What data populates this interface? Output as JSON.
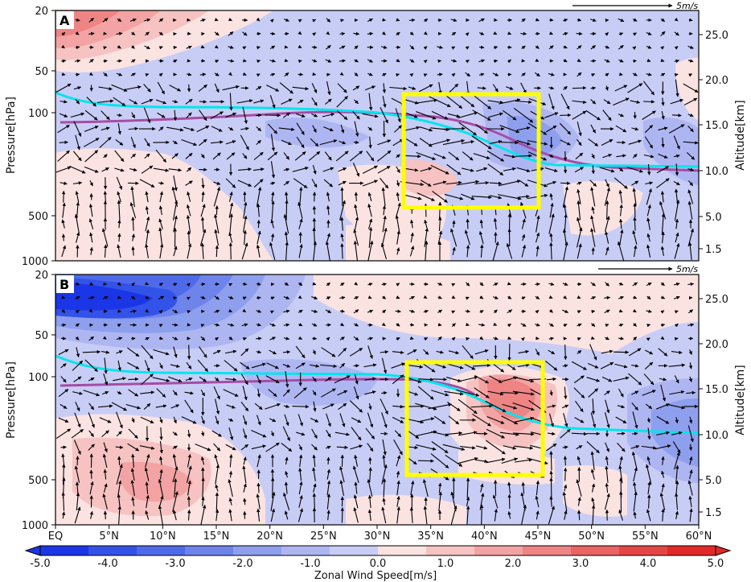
{
  "chart_data": [
    {
      "type": "contour",
      "panel_label": "A",
      "ylabel_left": "Pressure[hPa]",
      "ylabel_right": "Altitude[km]",
      "y_ticks_left": [
        "20",
        "50",
        "100",
        "500",
        "1000"
      ],
      "y_ticks_right": [
        "25.0",
        "20.0",
        "15.0",
        "10.0",
        "5.0",
        "1.5"
      ],
      "reference_vector": "5m/s",
      "tropopause_lines": [
        {
          "color": "#00e5ee",
          "pressure_hPa": [
            [
              0,
              75
            ],
            [
              5,
              88
            ],
            [
              10,
              90
            ],
            [
              15,
              90
            ],
            [
              20,
              91
            ],
            [
              25,
              92
            ],
            [
              30,
              95
            ],
            [
              32,
              97
            ],
            [
              35,
              108
            ],
            [
              38,
              115
            ],
            [
              40,
              140
            ],
            [
              42,
              190
            ],
            [
              44,
              230
            ],
            [
              46,
              238
            ],
            [
              50,
              238
            ],
            [
              55,
              240
            ],
            [
              60,
              242
            ]
          ]
        },
        {
          "color": "#a64ca6",
          "pressure_hPa": [
            [
              0,
              110
            ],
            [
              5,
              110
            ],
            [
              10,
              109
            ],
            [
              15,
              107
            ],
            [
              20,
              106
            ],
            [
              25,
              104
            ],
            [
              30,
              100
            ],
            [
              35,
              102
            ],
            [
              40,
              110
            ],
            [
              42,
              125
            ],
            [
              45,
              175
            ],
            [
              48,
              210
            ],
            [
              52,
              235
            ],
            [
              60,
              250
            ]
          ]
        }
      ],
      "highlight_box": {
        "lat": [
          32.5,
          45.5
        ],
        "pressure_hPa": [
          70,
          520
        ],
        "color": "#ffff00"
      }
    },
    {
      "type": "contour",
      "panel_label": "B",
      "ylabel_left": "Pressure[hPa]",
      "ylabel_right": "Altitude[km]",
      "y_ticks_left": [
        "20",
        "50",
        "100",
        "500",
        "1000"
      ],
      "y_ticks_right": [
        "25.0",
        "20.0",
        "15.0",
        "10.0",
        "5.0",
        "1.5"
      ],
      "reference_vector": "5m/s",
      "x_ticks": [
        "EQ",
        "5°N",
        "10°N",
        "15°N",
        "20°N",
        "25°N",
        "30°N",
        "35°N",
        "40°N",
        "45°N",
        "50°N",
        "55°N",
        "60°N"
      ],
      "tropopause_lines": [
        {
          "color": "#00e5ee",
          "pressure_hPa": [
            [
              0,
              83
            ],
            [
              5,
              95
            ],
            [
              10,
              97
            ],
            [
              15,
              96
            ],
            [
              20,
              95
            ],
            [
              25,
              95
            ],
            [
              30,
              97
            ],
            [
              33,
              100
            ],
            [
              35,
              110
            ],
            [
              38,
              130
            ],
            [
              40,
              150
            ],
            [
              42,
              175
            ],
            [
              45,
              200
            ],
            [
              48,
              210
            ],
            [
              52,
              220
            ],
            [
              56,
              225
            ],
            [
              60,
              228
            ]
          ]
        },
        {
          "color": "#a64ca6",
          "pressure_hPa": [
            [
              0,
              115
            ],
            [
              5,
              114
            ],
            [
              10,
              112
            ],
            [
              15,
              110
            ],
            [
              20,
              108
            ],
            [
              25,
              106
            ],
            [
              30,
              104
            ],
            [
              33,
              104
            ],
            [
              36,
              110
            ],
            [
              40,
              125
            ]
          ]
        }
      ],
      "highlight_box": {
        "lat": [
          33,
          45.8
        ],
        "pressure_hPa": [
          80,
          550
        ],
        "color": "#ffff00"
      }
    }
  ],
  "colorbar": {
    "title": "Zonal Wind Speed[m/s]",
    "labels": [
      "-5.0",
      "-4.0",
      "-3.0",
      "-2.0",
      "-1.0",
      "0.0",
      "1.0",
      "2.0",
      "3.0",
      "4.0",
      "5.0"
    ],
    "colors": [
      "#1b36e6",
      "#3352e8",
      "#4f6ae9",
      "#6e84eb",
      "#8e9fee",
      "#aeb6f2",
      "#c8cdf6",
      "#fbe3e2",
      "#f6c3c2",
      "#f3a3a3",
      "#ee8484",
      "#ea6464",
      "#e64545",
      "#e22828"
    ],
    "range": [
      -5.0,
      5.0
    ]
  }
}
